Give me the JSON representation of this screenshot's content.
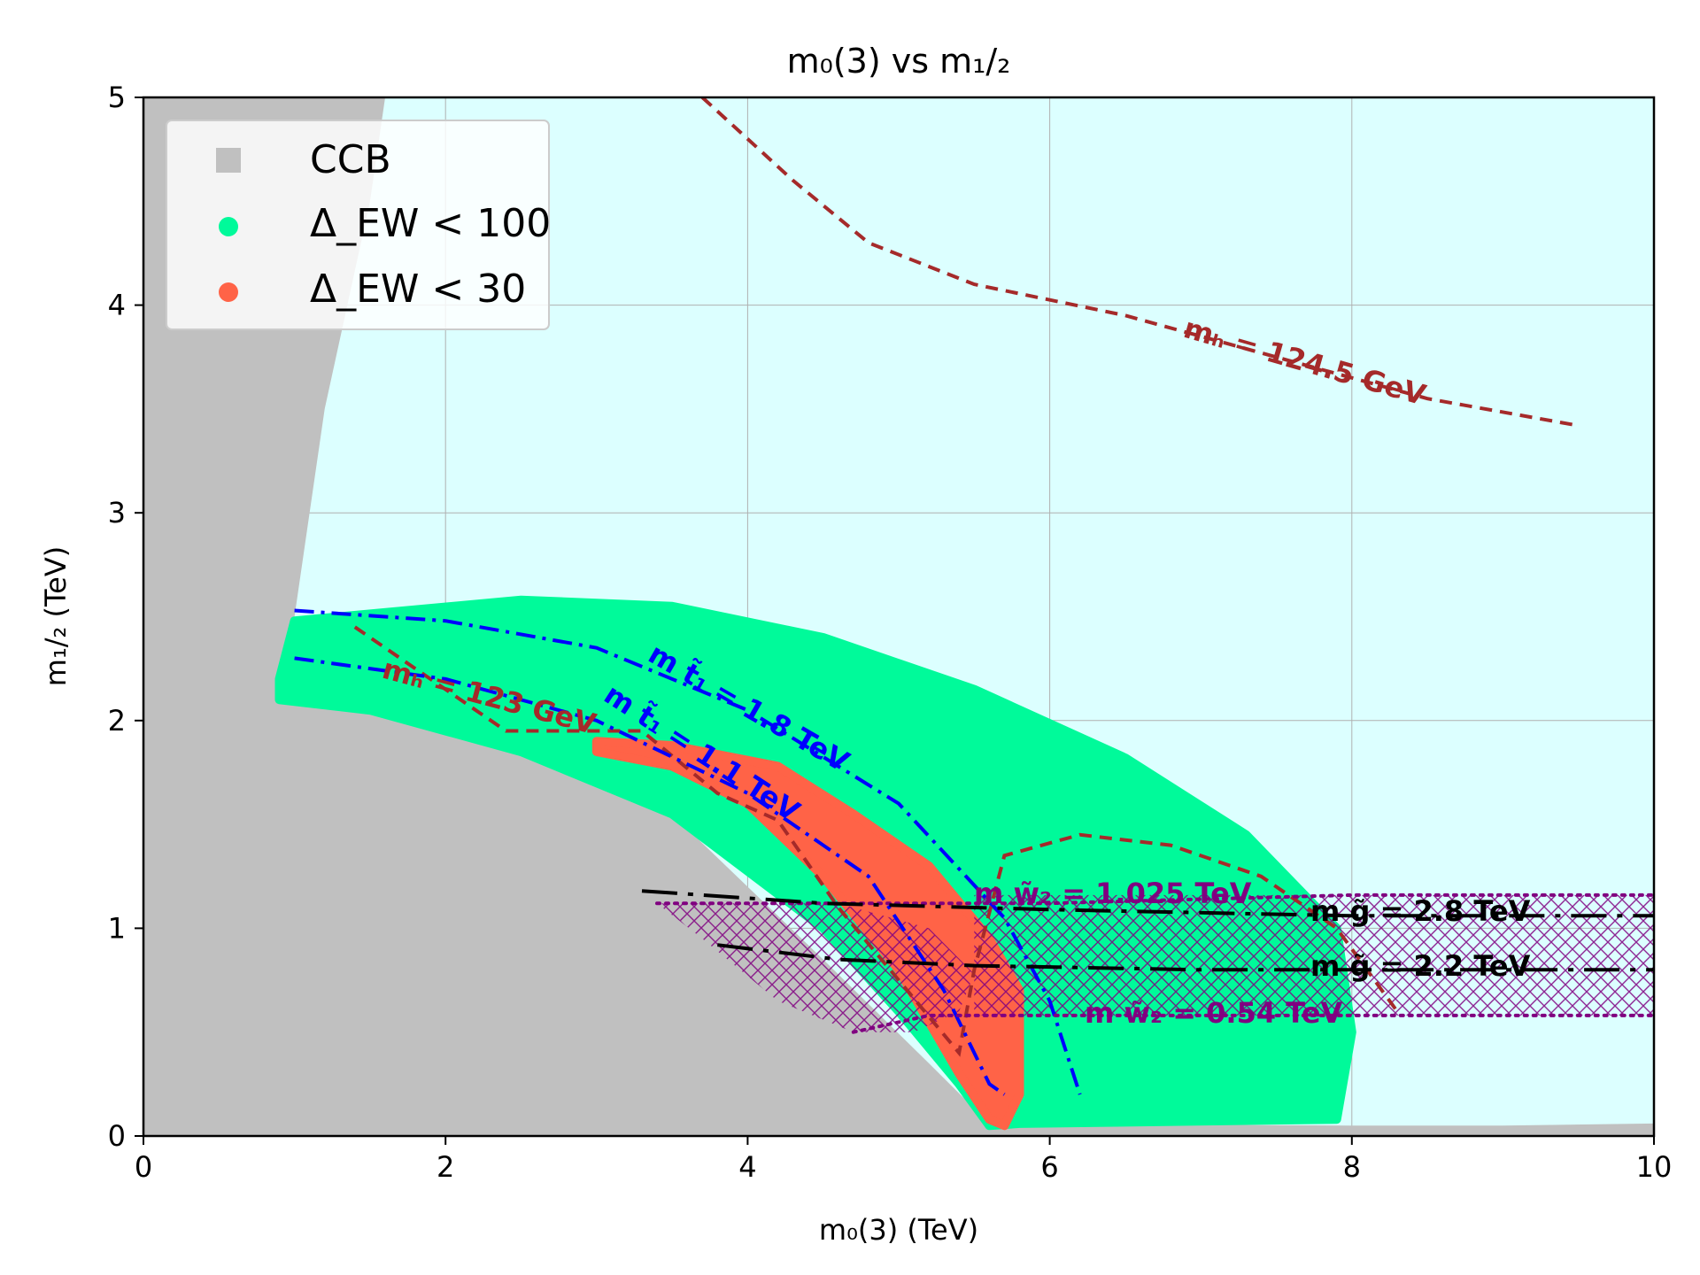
{
  "chart_data": {
    "type": "contour-scatter",
    "title": "m₀(3) vs m₁/₂",
    "xlabel": "m₀(3) (TeV)",
    "ylabel": "m₁/₂ (TeV)",
    "xlim": [
      0,
      10
    ],
    "ylim": [
      0,
      5
    ],
    "xticks": [
      "0",
      "2",
      "4",
      "6",
      "8",
      "10"
    ],
    "yticks": [
      "0",
      "1",
      "2",
      "3",
      "4",
      "5"
    ],
    "grid": true,
    "legend_position": "top-left",
    "colors": {
      "ccb": "#c0c0c0",
      "allowed_background": "#dcffff",
      "ew100": "#00fa9a",
      "ew30": "#ff6347",
      "mh": "#a52a2a",
      "mstop": "#0000ff",
      "mwino": "#800080",
      "mgluino": "#000000"
    },
    "legend": [
      {
        "label": "CCB",
        "marker": "square"
      },
      {
        "label": "Δ_EW < 100",
        "marker": "circle"
      },
      {
        "label": "Δ_EW < 30",
        "marker": "circle"
      }
    ],
    "regions": {
      "ccb": [
        [
          0,
          5
        ],
        [
          1.6,
          5
        ],
        [
          1.5,
          4.5
        ],
        [
          1.2,
          3.5
        ],
        [
          1.0,
          2.5
        ],
        [
          1.0,
          2.15
        ],
        [
          2.5,
          1.85
        ],
        [
          3.5,
          1.55
        ],
        [
          4.5,
          0.85
        ],
        [
          5.2,
          0.35
        ],
        [
          5.6,
          0.06
        ],
        [
          8,
          0.05
        ],
        [
          9,
          0.05
        ],
        [
          10,
          0.06
        ],
        [
          10,
          0
        ],
        [
          0,
          0
        ]
      ],
      "ew100": [
        [
          0.9,
          2.2
        ],
        [
          1.0,
          2.48
        ],
        [
          2.5,
          2.58
        ],
        [
          3.5,
          2.55
        ],
        [
          4.5,
          2.4
        ],
        [
          5.5,
          2.15
        ],
        [
          6.5,
          1.82
        ],
        [
          7.3,
          1.45
        ],
        [
          7.9,
          1.0
        ],
        [
          8.0,
          0.5
        ],
        [
          7.9,
          0.08
        ],
        [
          5.8,
          0.06
        ],
        [
          5.6,
          0.05
        ],
        [
          5.4,
          0.25
        ],
        [
          5.0,
          0.6
        ],
        [
          4.5,
          1.0
        ],
        [
          3.5,
          1.55
        ],
        [
          2.5,
          1.85
        ],
        [
          1.5,
          2.05
        ],
        [
          0.9,
          2.1
        ]
      ],
      "ew30": [
        [
          3.0,
          1.9
        ],
        [
          3.5,
          1.88
        ],
        [
          4.2,
          1.78
        ],
        [
          4.7,
          1.55
        ],
        [
          5.2,
          1.3
        ],
        [
          5.6,
          0.95
        ],
        [
          5.8,
          0.7
        ],
        [
          5.8,
          0.2
        ],
        [
          5.7,
          0.05
        ],
        [
          5.6,
          0.08
        ],
        [
          5.4,
          0.3
        ],
        [
          5.0,
          0.8
        ],
        [
          4.5,
          1.25
        ],
        [
          4.0,
          1.6
        ],
        [
          3.5,
          1.78
        ],
        [
          3.0,
          1.85
        ]
      ],
      "wino_band_main": [
        [
          5.5,
          1.16
        ],
        [
          10,
          1.16
        ],
        [
          10,
          0.58
        ],
        [
          5.5,
          0.58
        ]
      ],
      "wino_hatch_left": [
        [
          3.4,
          1.12
        ],
        [
          4.6,
          1.12
        ],
        [
          5.2,
          1.0
        ],
        [
          5.5,
          0.78
        ],
        [
          5.4,
          0.6
        ],
        [
          5.1,
          0.5
        ],
        [
          4.7,
          0.5
        ],
        [
          4.2,
          0.65
        ],
        [
          3.7,
          0.95
        ]
      ]
    },
    "contours": [
      {
        "name": "m_h = 124.5 GeV",
        "label": "mₕ = 124.5 GeV",
        "style": "dashed",
        "color": "mh",
        "points": [
          [
            3.7,
            5.0
          ],
          [
            4.3,
            4.6
          ],
          [
            4.8,
            4.3
          ],
          [
            5.5,
            4.1
          ],
          [
            6.5,
            3.95
          ],
          [
            7.5,
            3.75
          ],
          [
            8.5,
            3.55
          ],
          [
            9.5,
            3.42
          ]
        ]
      },
      {
        "name": "m_h = 123 GeV",
        "label": "mₕ = 123 GeV",
        "style": "dashed",
        "color": "mh",
        "points": [
          [
            1.4,
            2.45
          ],
          [
            2.4,
            1.95
          ],
          [
            3.3,
            1.95
          ],
          [
            3.8,
            1.65
          ],
          [
            4.2,
            1.52
          ],
          [
            4.6,
            1.1
          ],
          [
            5.0,
            0.75
          ],
          [
            5.4,
            0.4
          ],
          [
            5.5,
            0.8
          ],
          [
            5.7,
            1.35
          ],
          [
            6.2,
            1.45
          ],
          [
            6.8,
            1.4
          ],
          [
            7.4,
            1.25
          ],
          [
            7.9,
            1.0
          ],
          [
            8.3,
            0.6
          ]
        ]
      },
      {
        "name": "m_stop1 = 1.8 TeV",
        "label": "m t̃₁ = 1.8 TeV",
        "style": "dashdot",
        "color": "mstop",
        "points": [
          [
            1.0,
            2.53
          ],
          [
            2.0,
            2.48
          ],
          [
            3.0,
            2.35
          ],
          [
            4.0,
            2.05
          ],
          [
            5.0,
            1.6
          ],
          [
            5.7,
            1.05
          ],
          [
            6.0,
            0.65
          ],
          [
            6.2,
            0.2
          ]
        ]
      },
      {
        "name": "m_stop1 = 1.1 TeV",
        "label": "m t̃₁ = 1.1 TeV",
        "style": "dashdot",
        "color": "mstop",
        "points": [
          [
            1.0,
            2.3
          ],
          [
            2.0,
            2.2
          ],
          [
            3.0,
            2.0
          ],
          [
            4.0,
            1.65
          ],
          [
            4.8,
            1.25
          ],
          [
            5.3,
            0.7
          ],
          [
            5.6,
            0.25
          ],
          [
            5.7,
            0.2
          ]
        ]
      },
      {
        "name": "m_wino2 = 1.025 TeV",
        "label": "m w̃₂ = 1.025 TeV",
        "style": "dotted",
        "color": "mwino",
        "points": [
          [
            3.4,
            1.12
          ],
          [
            4.5,
            1.12
          ],
          [
            6.0,
            1.12
          ],
          [
            8.0,
            1.16
          ],
          [
            10,
            1.16
          ]
        ]
      },
      {
        "name": "m_wino2 = 0.54 TeV",
        "label": "m w̃₂ = 0.54 TeV",
        "style": "dotted",
        "color": "mwino",
        "points": [
          [
            4.7,
            0.5
          ],
          [
            5.2,
            0.58
          ],
          [
            7.0,
            0.58
          ],
          [
            10,
            0.58
          ]
        ]
      },
      {
        "name": "m_gluino = 2.8 TeV",
        "label": "m g̃ = 2.8 TeV",
        "style": "longdashdot",
        "color": "mgluino",
        "points": [
          [
            3.3,
            1.18
          ],
          [
            4.5,
            1.12
          ],
          [
            6.0,
            1.09
          ],
          [
            8.0,
            1.06
          ],
          [
            10,
            1.06
          ]
        ]
      },
      {
        "name": "m_gluino = 2.2 TeV",
        "label": "m g̃ = 2.2 TeV",
        "style": "longdashdot",
        "color": "mgluino",
        "points": [
          [
            3.8,
            0.92
          ],
          [
            4.6,
            0.85
          ],
          [
            5.5,
            0.82
          ],
          [
            7.0,
            0.8
          ],
          [
            10,
            0.8
          ]
        ]
      }
    ]
  }
}
